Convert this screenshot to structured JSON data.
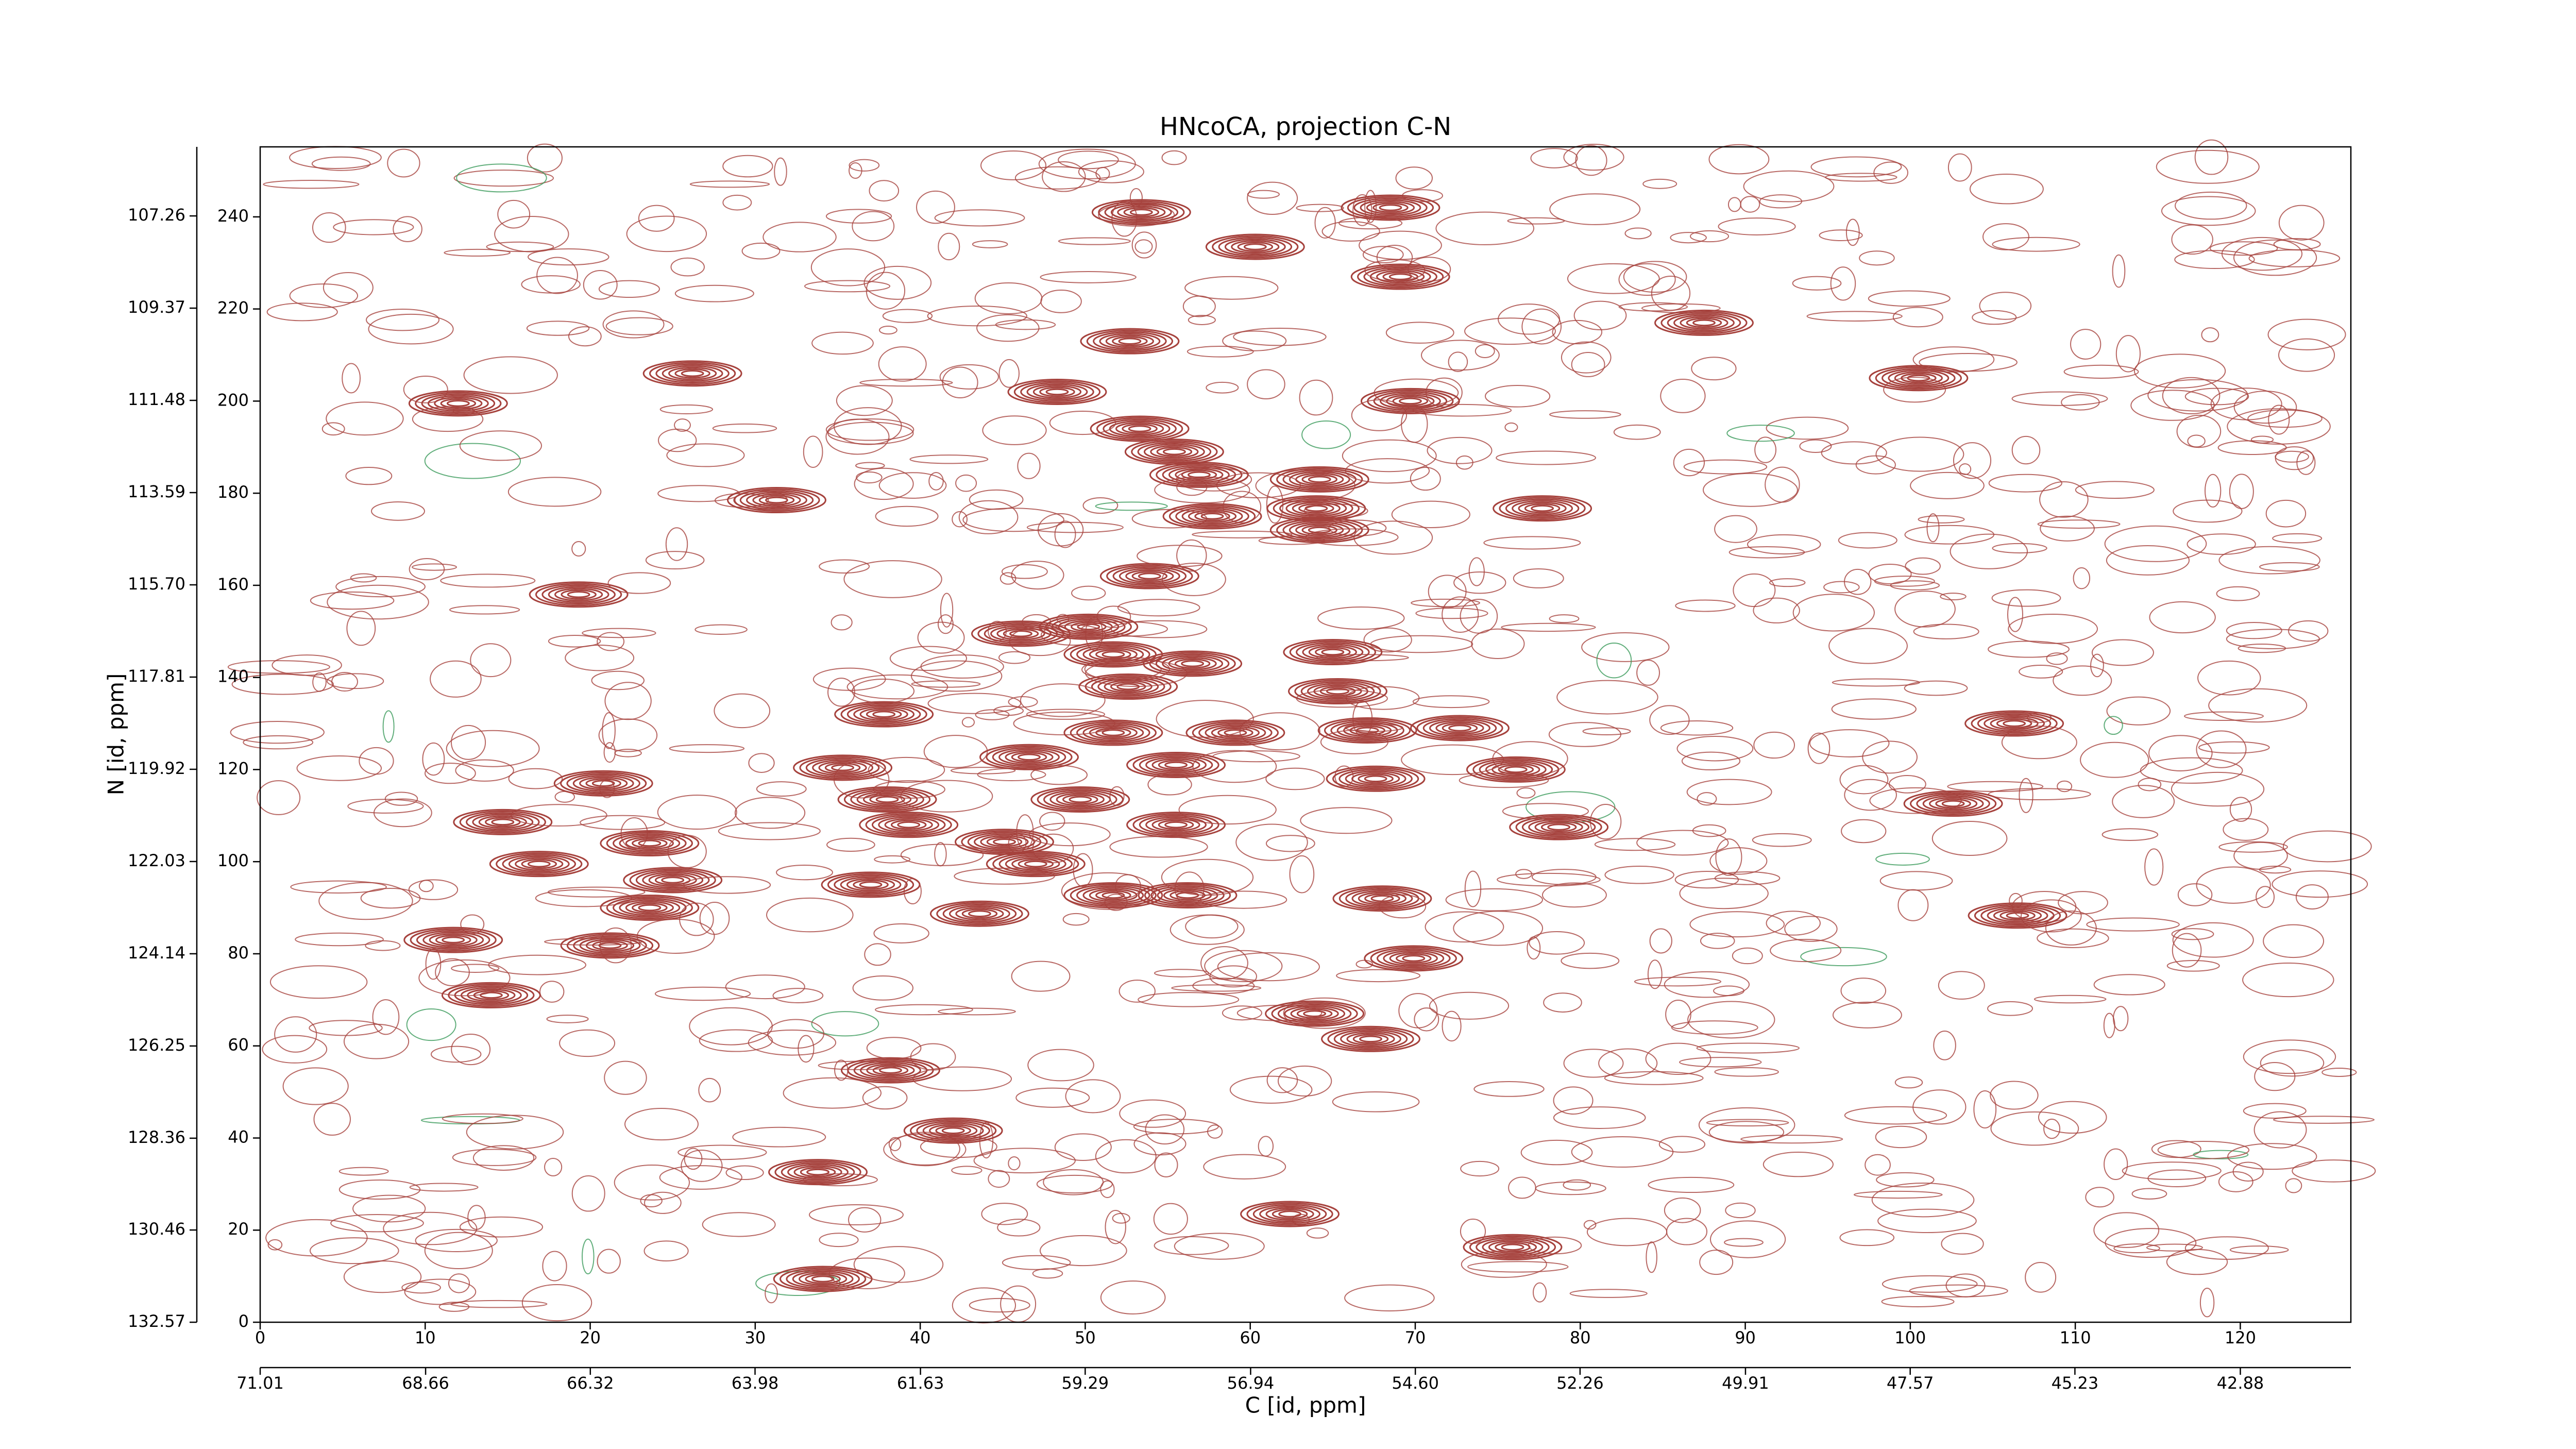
{
  "chart_data": {
    "type": "contour",
    "title": "HNcoCA, projection C-N",
    "xlabel": "C [id, ppm]",
    "ylabel": "N [id, ppm]",
    "xlim": [
      0,
      126.7
    ],
    "xticks": [
      0,
      10,
      20,
      30,
      40,
      50,
      60,
      70,
      80,
      90,
      100,
      110,
      120
    ],
    "ylim": [
      0,
      255.2
    ],
    "yticks": [
      0,
      20,
      40,
      60,
      80,
      100,
      120,
      140,
      160,
      180,
      200,
      220,
      240
    ],
    "x2lim": [
      71.01,
      41.31
    ],
    "x2ticks": [
      71.01,
      68.66,
      66.32,
      63.98,
      61.63,
      59.29,
      56.94,
      {
        "value": 54.6,
        "label": "54.60"
      },
      52.26,
      49.91,
      47.57,
      45.23,
      42.88
    ],
    "y2lim": [
      132.57,
      105.68
    ],
    "y2ticks": [
      132.57,
      130.46,
      128.36,
      126.25,
      124.14,
      122.03,
      119.92,
      117.81,
      {
        "value": 115.7,
        "label": "115.70"
      },
      113.59,
      111.48,
      109.37,
      107.26
    ],
    "color": "#a6423d",
    "peaks": {
      "x": [
        53.4,
        60.3,
        68.5,
        69.1,
        87.5,
        26.2,
        52.7,
        48.3,
        69.7,
        100.5,
        12,
        53.3,
        55.4,
        56.9,
        64.2,
        57.7,
        64,
        64.2,
        77.7,
        31.3,
        19.3,
        53.9,
        50.2,
        46.1,
        51.7,
        56.5,
        65,
        52.6,
        65.3,
        37.8,
        51.7,
        59.1,
        67.1,
        72.7,
        106.3,
        35.3,
        46.6,
        55.5,
        67.6,
        76.1,
        20.8,
        38,
        49.7,
        102.6,
        14.7,
        39.3,
        45.1,
        55.5,
        23.6,
        78.7,
        47,
        16.9,
        25,
        37,
        51.7,
        56.2,
        68,
        23.6,
        43.6,
        106.5,
        11.7,
        21.2,
        69.9,
        63.9,
        67.3,
        38.2,
        42,
        33.8,
        62.4,
        75.9,
        34.1,
        14
      ],
      "y": [
        241,
        233.5,
        242,
        227,
        217,
        206,
        213,
        202,
        200,
        205,
        199.5,
        194,
        189,
        184,
        183,
        175,
        176.7,
        172,
        176.7,
        178.5,
        158,
        162,
        151,
        149.5,
        145,
        143,
        145.5,
        138,
        137,
        132,
        128,
        128,
        128.5,
        129,
        130,
        120.4,
        122.7,
        121,
        118,
        120,
        117,
        113.5,
        113.5,
        112.6,
        108.6,
        108,
        104.3,
        108,
        104,
        107.5,
        99.5,
        99.5,
        96,
        95,
        92.7,
        92.7,
        92,
        90,
        88.7,
        88.3,
        83,
        81.8,
        79,
        67,
        61.5,
        54.7,
        41.6,
        32.6,
        23.5,
        16.3,
        9.4,
        71
      ]
    }
  }
}
